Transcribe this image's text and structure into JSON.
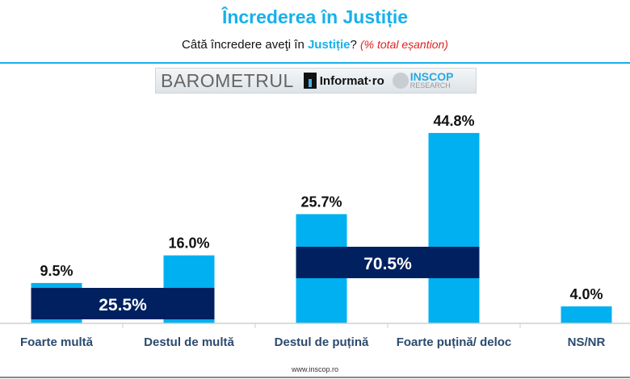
{
  "header": {
    "title": "Încrederea în Justiție",
    "question_prefix": "Câtă încredere aveţi în ",
    "question_highlight": "Justiție",
    "question_suffix": "?",
    "question_note": "(% total eșantion)"
  },
  "logos": {
    "barometrul": "BAROMETRUL",
    "informat": "Informat·ro",
    "inscop": "INSCOP",
    "research": "RESEARCH"
  },
  "footer": "www.inscop.ro",
  "colors": {
    "bar": "#00b0f0",
    "band": "#002060",
    "accent": "#16b1ec"
  },
  "chart_data": {
    "type": "bar",
    "title": "Încrederea în Justiție",
    "categories": [
      "Foarte multă",
      "Destul de multă",
      "Destul de puțină",
      "Foarte puțină/ deloc",
      "NS/NR"
    ],
    "values": [
      9.5,
      16.0,
      25.7,
      44.8,
      4.0
    ],
    "value_labels": [
      "9.5%",
      "16.0%",
      "25.7%",
      "44.8%",
      "4.0%"
    ],
    "groups": [
      {
        "label": "25.5%",
        "value": 25.5,
        "categories": [
          0,
          1
        ]
      },
      {
        "label": "70.5%",
        "value": 70.5,
        "categories": [
          2,
          3
        ]
      }
    ],
    "ylim": [
      0,
      50
    ],
    "grid": false,
    "legend": "none",
    "xlabel": "",
    "ylabel": ""
  }
}
